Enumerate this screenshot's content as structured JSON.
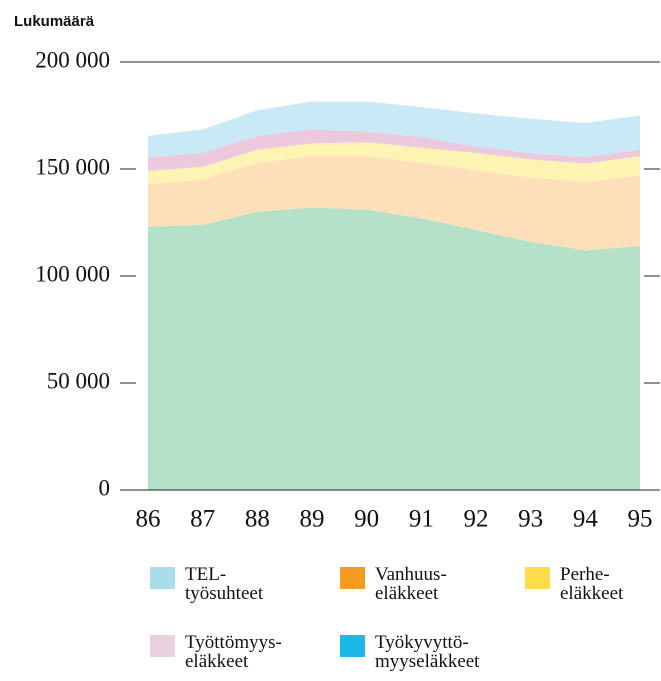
{
  "chart_data": {
    "type": "stacked_area",
    "y_label": "Lukumäärä",
    "categories": [
      "86",
      "87",
      "88",
      "89",
      "90",
      "91",
      "92",
      "93",
      "94",
      "95"
    ],
    "ylim": [
      0,
      200000
    ],
    "yticks": [
      0,
      {
        "value": 50000,
        "label": "50 000"
      },
      {
        "value": 100000,
        "label": "100 000"
      },
      {
        "value": 150000,
        "label": "150 000"
      },
      {
        "value": 200000,
        "label": "200 000"
      }
    ],
    "series": [
      {
        "name": "Työkyvyttö-\nmyyseläkkeet",
        "color": "#1bb8e8",
        "fill": "#b6e1c9",
        "values": [
          123000,
          124000,
          130000,
          132000,
          131000,
          127000,
          121500,
          116000,
          112000,
          114000
        ]
      },
      {
        "name": "Vanhuus-\neläkkeet",
        "color": "#f39c1f",
        "fill": "#fde0b9",
        "values": [
          20000,
          21000,
          23000,
          24000,
          25000,
          26000,
          28000,
          30000,
          32000,
          33000
        ]
      },
      {
        "name": "Perhe-\neläkkeet",
        "color": "#fddc4a",
        "fill": "#fdf4b3",
        "values": [
          6000,
          6000,
          6000,
          6000,
          6500,
          7000,
          8000,
          8500,
          8500,
          9000
        ]
      },
      {
        "name": "Työttömyys-\neläkkeet",
        "color": "#e8d2de",
        "fill": "#ecc9dd",
        "values": [
          6500,
          6500,
          6500,
          6500,
          5000,
          5000,
          3000,
          3000,
          3000,
          3000
        ]
      },
      {
        "name": "TEL-\ntyösuhteet",
        "color": "#a9dde9",
        "fill": "#c9e9f6",
        "values": [
          10000,
          11000,
          12000,
          13000,
          14000,
          14000,
          15500,
          16000,
          16000,
          16000
        ]
      }
    ]
  }
}
